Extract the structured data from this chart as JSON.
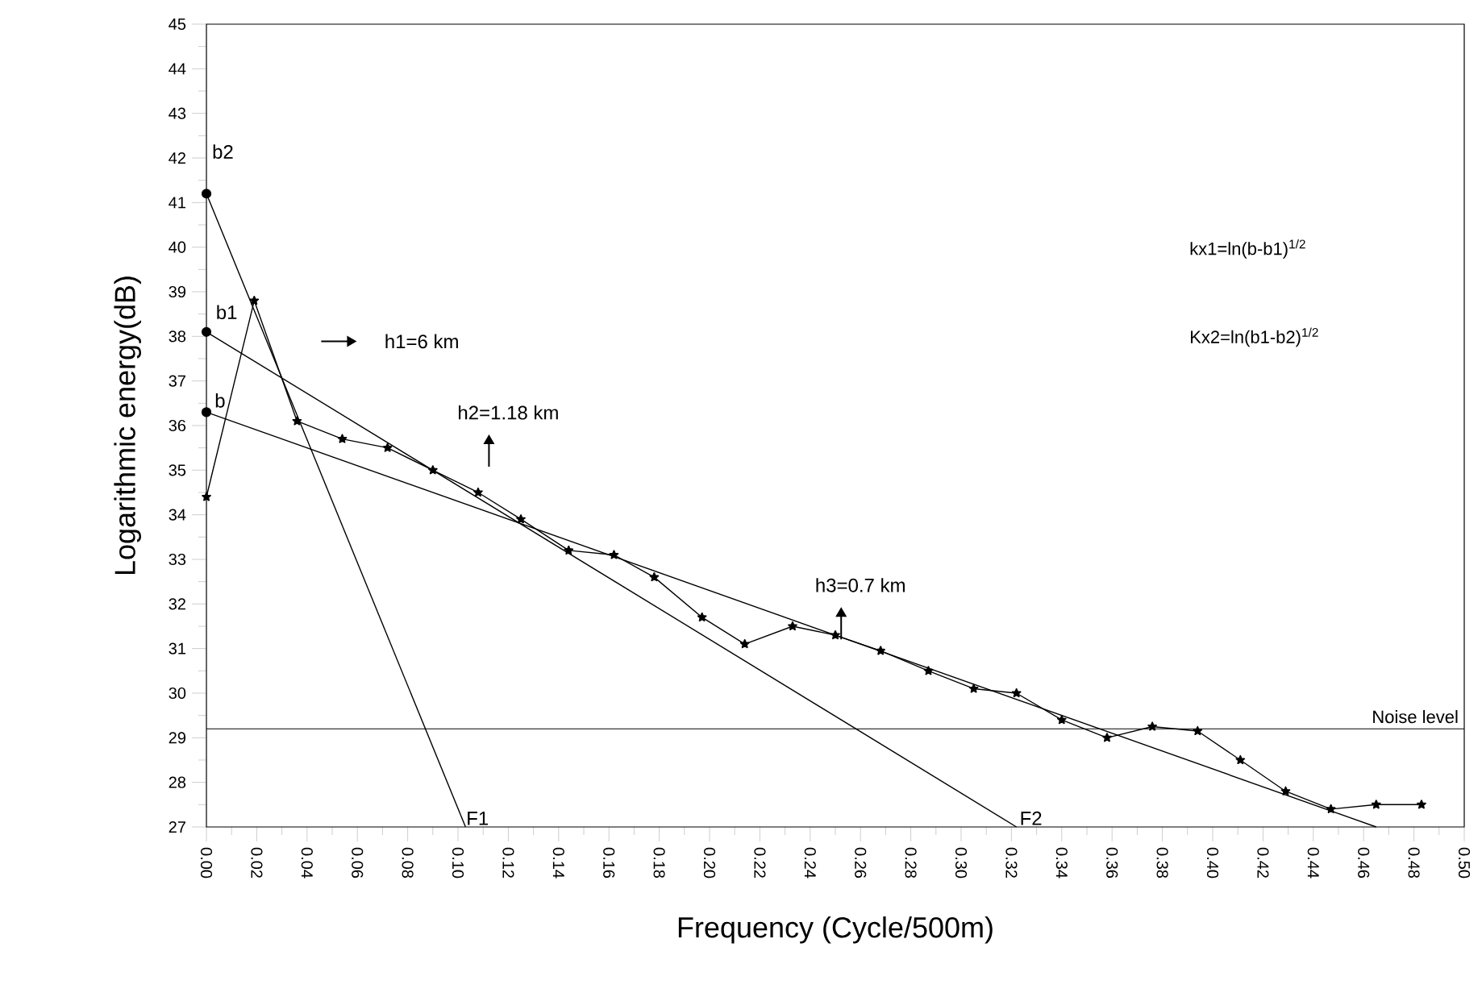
{
  "chart_data": {
    "type": "line",
    "xlabel": "Frequency (Cycle/500m)",
    "ylabel": "Logarithmic energy(dB)",
    "xlim": [
      0,
      0.5
    ],
    "ylim": [
      27,
      45
    ],
    "xticks": [
      {
        "value": 0,
        "label": "0.00"
      },
      {
        "value": 0.02,
        "label": "0.02"
      },
      {
        "value": 0.04,
        "label": "0.04"
      },
      {
        "value": 0.06,
        "label": "0.06"
      },
      {
        "value": 0.08,
        "label": "0.08"
      },
      {
        "value": 0.1,
        "label": "0.10"
      },
      {
        "value": 0.12,
        "label": "0.12"
      },
      {
        "value": 0.14,
        "label": "0.14"
      },
      {
        "value": 0.16,
        "label": "0.16"
      },
      {
        "value": 0.18,
        "label": "0.18"
      },
      {
        "value": 0.2,
        "label": "0.20"
      },
      {
        "value": 0.22,
        "label": "0.22"
      },
      {
        "value": 0.24,
        "label": "0.24"
      },
      {
        "value": 0.26,
        "label": "0.26"
      },
      {
        "value": 0.28,
        "label": "0.28"
      },
      {
        "value": 0.3,
        "label": "0.30"
      },
      {
        "value": 0.32,
        "label": "0.32"
      },
      {
        "value": 0.34,
        "label": "0.34"
      },
      {
        "value": 0.36,
        "label": "0.36"
      },
      {
        "value": 0.38,
        "label": "0.38"
      },
      {
        "value": 0.4,
        "label": "0.40"
      },
      {
        "value": 0.42,
        "label": "0.42"
      },
      {
        "value": 0.44,
        "label": "0.44"
      },
      {
        "value": 0.46,
        "label": "0.46"
      },
      {
        "value": 0.48,
        "label": "0.48"
      },
      {
        "value": 0.5,
        "label": "0.50"
      }
    ],
    "yticks": [
      27,
      28,
      29,
      30,
      31,
      32,
      33,
      34,
      35,
      36,
      37,
      38,
      39,
      40,
      41,
      42,
      43,
      44,
      45
    ],
    "series": [
      {
        "type": "line",
        "marker": "star",
        "color": "#000000",
        "x": [
          0,
          0.019,
          0.036,
          0.054,
          0.072,
          0.09,
          0.108,
          0.125,
          0.144,
          0.162,
          0.178,
          0.197,
          0.214,
          0.233,
          0.25,
          0.268,
          0.287,
          0.305,
          0.322,
          0.34,
          0.358,
          0.376,
          0.394,
          0.411,
          0.429,
          0.447,
          0.465,
          0.483
        ],
        "values": [
          34.4,
          38.8,
          36.1,
          35.7,
          35.5,
          35.0,
          34.5,
          33.9,
          33.2,
          33.1,
          32.6,
          31.7,
          31.1,
          31.5,
          31.3,
          30.95,
          30.5,
          30.1,
          30.0,
          29.4,
          29.0,
          29.25,
          29.15,
          28.5,
          27.8,
          27.4,
          27.5,
          27.5
        ]
      },
      {
        "type": "line",
        "marker": "none",
        "color": "#000000",
        "x": [
          0,
          0.103
        ],
        "values": [
          41.2,
          27
        ]
      },
      {
        "type": "line",
        "marker": "none",
        "color": "#000000",
        "x": [
          0,
          0.322
        ],
        "values": [
          38.1,
          27
        ]
      },
      {
        "type": "line",
        "marker": "none",
        "color": "#000000",
        "x": [
          0,
          0.465
        ],
        "values": [
          36.3,
          27
        ]
      },
      {
        "type": "scatter",
        "marker": "circle",
        "color": "#000000",
        "x": [
          0,
          0,
          0
        ],
        "values": [
          41.2,
          38.1,
          36.3
        ]
      }
    ],
    "ref_lines": [
      {
        "axis": "y",
        "value": 29.2,
        "label": "Noise level",
        "color": "#000000"
      }
    ],
    "annotations": [
      "b2",
      "b1",
      "b",
      "h1=6 km",
      "h2=1.18 km",
      "h3=0.7 km",
      "F1",
      "F2",
      "kx1=ln(b-b1)$^{1/2}$",
      "Kx2=ln(b1-b2)$^{1/2}$"
    ]
  }
}
